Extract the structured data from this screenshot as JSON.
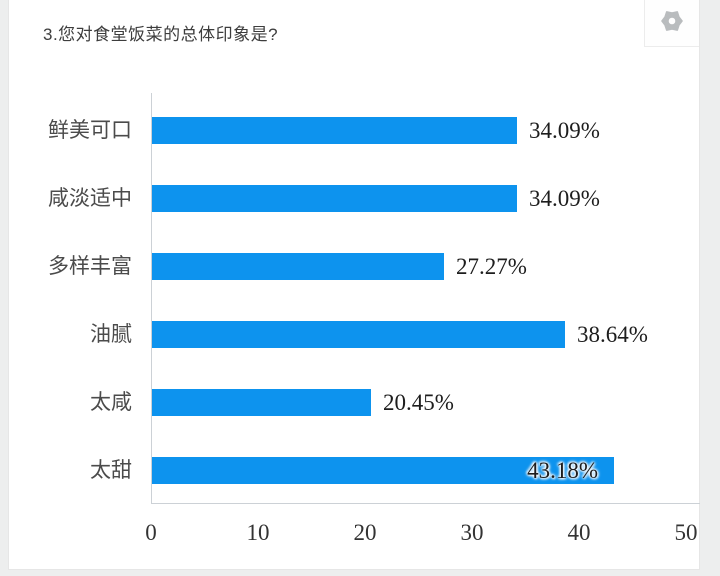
{
  "page": {
    "title": "3.您对食堂饭菜的总体印象是?",
    "settings_icon": "gear-icon"
  },
  "colors": {
    "bar": "#0d93ee",
    "axis": "#ccd1d6",
    "card_background": "#ffffff",
    "page_background": "#edeeee"
  },
  "chart_data": {
    "type": "bar",
    "orientation": "horizontal",
    "title": "3.您对食堂饭菜的总体印象是?",
    "categories": [
      "鲜美可口",
      "咸淡适中",
      "多样丰富",
      "油腻",
      "太咸",
      "太甜"
    ],
    "values": [
      34.09,
      34.09,
      27.27,
      38.64,
      20.45,
      43.18
    ],
    "value_labels": [
      "34.09%",
      "34.09%",
      "27.27%",
      "38.64%",
      "20.45%",
      "43.18%"
    ],
    "x_ticks": [
      "0",
      "10",
      "20",
      "30",
      "40",
      "50"
    ],
    "xlim": [
      0,
      50
    ],
    "grid": false,
    "legend": false,
    "bar_color": "#0d93ee"
  }
}
